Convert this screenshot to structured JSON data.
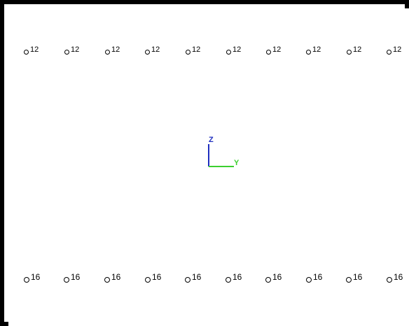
{
  "viewport": {
    "background": "#ffffff",
    "border_color": "#000000"
  },
  "nodes_top": {
    "labels": [
      "12",
      "12",
      "12",
      "12",
      "12",
      "12",
      "12",
      "12",
      "12",
      "12"
    ]
  },
  "nodes_bottom": {
    "labels": [
      "16",
      "16",
      "16",
      "16",
      "16",
      "16",
      "16",
      "16",
      "16",
      "16"
    ]
  },
  "axis_triad": {
    "z_label": "Z",
    "y_label": "Y",
    "z_color": "#1f2fbf",
    "y_color": "#3ccf2f"
  }
}
